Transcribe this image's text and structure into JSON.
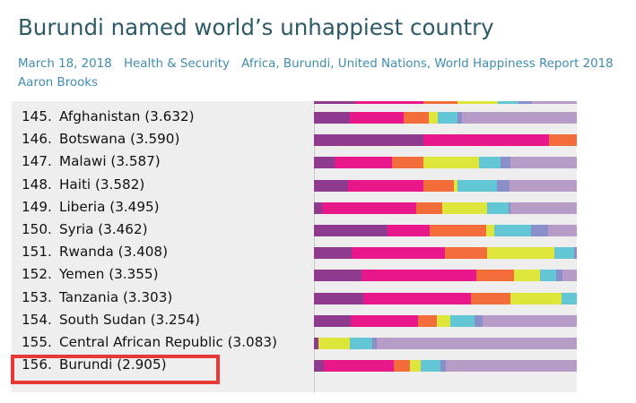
{
  "article": {
    "title": "Burundi named world’s unhappiest country",
    "date": "March 18, 2018",
    "category": "Health & Security",
    "tags": [
      "Africa",
      "Burundi",
      "United Nations",
      "World Happiness Report 2018"
    ],
    "author": "Aaron Brooks"
  },
  "chart_data": {
    "type": "bar",
    "stacked": true,
    "orientation": "horizontal",
    "colors": [
      "#8e3a8e",
      "#e8178a",
      "#f26d3a",
      "#dee63c",
      "#62c6d4",
      "#8b8fc9",
      "#b79cc7"
    ],
    "error_bar_color": "#333333",
    "rows": [
      {
        "rank": "145.",
        "name": "Afghanistan (3.632)",
        "score": 3.632,
        "err": 0.05,
        "segments": [
          0.52,
          0.8,
          0.37,
          0.12,
          0.3,
          0.06,
          3.24
        ]
      },
      {
        "rank": "146.",
        "name": "Botswana (3.590)",
        "score": 3.59,
        "err": 0.05,
        "segments": [
          1.6,
          1.85,
          0.65,
          0.9,
          0.08,
          0.18,
          0.45
        ]
      },
      {
        "rank": "147.",
        "name": "Malawi (3.587)",
        "score": 3.587,
        "err": 0.05,
        "segments": [
          0.3,
          0.85,
          0.45,
          0.82,
          0.32,
          0.14,
          2.7
        ]
      },
      {
        "rank": "148.",
        "name": "Haiti (3.582)",
        "score": 3.582,
        "err": 0.05,
        "segments": [
          0.5,
          1.1,
          0.45,
          0.06,
          0.58,
          0.18,
          2.68
        ]
      },
      {
        "rank": "149.",
        "name": "Liberia (3.495)",
        "score": 3.495,
        "err": 0.05,
        "segments": [
          0.12,
          1.38,
          0.38,
          0.66,
          0.32,
          0.02,
          2.6
        ]
      },
      {
        "rank": "150.",
        "name": "Syria (3.462)",
        "score": 3.462,
        "err": 0.08,
        "segments": [
          1.08,
          0.62,
          0.82,
          0.12,
          0.55,
          0.25,
          1.9
        ]
      },
      {
        "rank": "151.",
        "name": "Rwanda (3.408)",
        "score": 3.408,
        "err": 0.05,
        "segments": [
          0.55,
          1.37,
          0.62,
          0.98,
          0.3,
          0.7,
          0.8
        ]
      },
      {
        "rank": "152.",
        "name": "Yemen (3.355)",
        "score": 3.355,
        "err": 0.05,
        "segments": [
          0.7,
          1.68,
          0.55,
          0.38,
          0.24,
          0.1,
          1.72
        ]
      },
      {
        "rank": "153.",
        "name": "Tanzania (3.303)",
        "score": 3.303,
        "err": 0.05,
        "segments": [
          0.72,
          1.58,
          0.58,
          0.75,
          0.4,
          0.18,
          1.15
        ]
      },
      {
        "rank": "154.",
        "name": "South Sudan (3.254)",
        "score": 3.254,
        "err": 0.05,
        "segments": [
          0.54,
          0.98,
          0.28,
          0.2,
          0.35,
          0.12,
          2.62
        ]
      },
      {
        "rank": "155.",
        "name": "Central African Republic (3.083)",
        "score": 3.083,
        "err": 0.05,
        "segments": [
          0.06,
          0.0,
          0.0,
          0.46,
          0.34,
          0.06,
          3.92
        ]
      },
      {
        "rank": "156.",
        "name": "Burundi (2.905)",
        "score": 2.905,
        "err": 0.05,
        "segments": [
          0.15,
          1.02,
          0.24,
          0.16,
          0.28,
          0.08,
          2.6
        ]
      }
    ]
  }
}
